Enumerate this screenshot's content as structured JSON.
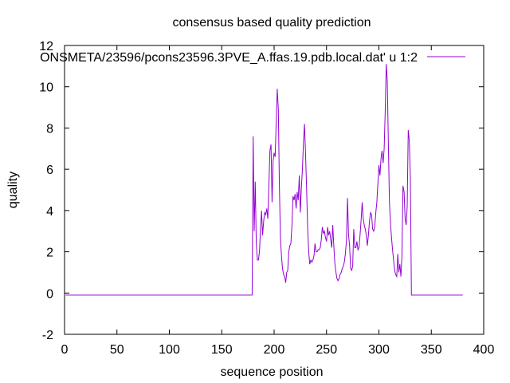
{
  "chart_data": {
    "type": "line",
    "title": "consensus based quality prediction",
    "xlabel": "sequence position",
    "ylabel": "quality",
    "xlim": [
      0,
      400
    ],
    "ylim": [
      -2,
      12
    ],
    "xticks": [
      0,
      50,
      100,
      150,
      200,
      250,
      300,
      350,
      400
    ],
    "yticks": [
      -2,
      0,
      2,
      4,
      6,
      8,
      10,
      12
    ],
    "grid": false,
    "legend_position": "top-right",
    "series": [
      {
        "name": "ONSMETA/23596/pcons23596.3PVE_A.ffas.19.pdb.local.dat' u 1:2",
        "color": "#9400d3",
        "points": [
          [
            1,
            -0.1
          ],
          [
            179,
            -0.1
          ],
          [
            180,
            7.6
          ],
          [
            181,
            3.0
          ],
          [
            182,
            5.4
          ],
          [
            183,
            2.4
          ],
          [
            184,
            1.6
          ],
          [
            185,
            1.6
          ],
          [
            186,
            2.0
          ],
          [
            187,
            3.1
          ],
          [
            188,
            4.0
          ],
          [
            189,
            2.8
          ],
          [
            190,
            3.5
          ],
          [
            191,
            3.9
          ],
          [
            192,
            3.8
          ],
          [
            193,
            4.1
          ],
          [
            194,
            3.6
          ],
          [
            195,
            5.2
          ],
          [
            196,
            6.9
          ],
          [
            197,
            7.2
          ],
          [
            198,
            4.4
          ],
          [
            199,
            6.4
          ],
          [
            200,
            6.8
          ],
          [
            201,
            6.6
          ],
          [
            202,
            8.3
          ],
          [
            203,
            9.9
          ],
          [
            204,
            8.9
          ],
          [
            205,
            5.2
          ],
          [
            206,
            2.7
          ],
          [
            207,
            1.8
          ],
          [
            208,
            1.2
          ],
          [
            209,
            0.9
          ],
          [
            210,
            0.8
          ],
          [
            211,
            0.5
          ],
          [
            212,
            1.0
          ],
          [
            213,
            1.1
          ],
          [
            214,
            2.0
          ],
          [
            215,
            2.3
          ],
          [
            216,
            2.4
          ],
          [
            217,
            3.3
          ],
          [
            218,
            4.7
          ],
          [
            219,
            4.5
          ],
          [
            220,
            4.8
          ],
          [
            221,
            4.1
          ],
          [
            222,
            4.9
          ],
          [
            223,
            4.5
          ],
          [
            224,
            5.7
          ],
          [
            225,
            3.9
          ],
          [
            226,
            5.1
          ],
          [
            227,
            6.0
          ],
          [
            228,
            7.3
          ],
          [
            229,
            8.2
          ],
          [
            230,
            6.8
          ],
          [
            231,
            5.0
          ],
          [
            232,
            3.1
          ],
          [
            233,
            2.0
          ],
          [
            234,
            1.4
          ],
          [
            235,
            1.6
          ],
          [
            236,
            1.5
          ],
          [
            237,
            1.6
          ],
          [
            238,
            1.8
          ],
          [
            239,
            2.4
          ],
          [
            240,
            2.0
          ],
          [
            241,
            2.0
          ],
          [
            242,
            2.1
          ],
          [
            243,
            2.1
          ],
          [
            244,
            2.2
          ],
          [
            245,
            2.6
          ],
          [
            246,
            3.2
          ],
          [
            247,
            2.9
          ],
          [
            248,
            3.0
          ],
          [
            249,
            2.7
          ],
          [
            250,
            2.5
          ],
          [
            251,
            3.2
          ],
          [
            252,
            2.8
          ],
          [
            253,
            3.0
          ],
          [
            254,
            2.6
          ],
          [
            255,
            2.2
          ],
          [
            256,
            3.3
          ],
          [
            257,
            2.2
          ],
          [
            258,
            1.4
          ],
          [
            259,
            1.0
          ],
          [
            260,
            0.7
          ],
          [
            261,
            0.6
          ],
          [
            262,
            0.7
          ],
          [
            263,
            0.9
          ],
          [
            264,
            1.0
          ],
          [
            265,
            1.2
          ],
          [
            266,
            1.3
          ],
          [
            267,
            1.5
          ],
          [
            268,
            1.9
          ],
          [
            269,
            2.5
          ],
          [
            270,
            4.6
          ],
          [
            271,
            2.8
          ],
          [
            272,
            2.3
          ],
          [
            273,
            1.2
          ],
          [
            274,
            1.1
          ],
          [
            275,
            1.3
          ],
          [
            276,
            3.1
          ],
          [
            277,
            2.2
          ],
          [
            278,
            2.2
          ],
          [
            279,
            2.5
          ],
          [
            280,
            2.1
          ],
          [
            281,
            2.2
          ],
          [
            282,
            2.8
          ],
          [
            283,
            3.5
          ],
          [
            284,
            4.4
          ],
          [
            285,
            3.6
          ],
          [
            286,
            3.3
          ],
          [
            287,
            3.1
          ],
          [
            288,
            2.8
          ],
          [
            289,
            2.3
          ],
          [
            290,
            2.8
          ],
          [
            291,
            3.5
          ],
          [
            292,
            3.9
          ],
          [
            293,
            3.8
          ],
          [
            294,
            3.1
          ],
          [
            295,
            3.0
          ],
          [
            296,
            3.2
          ],
          [
            297,
            3.9
          ],
          [
            298,
            4.4
          ],
          [
            299,
            5.3
          ],
          [
            300,
            6.2
          ],
          [
            301,
            5.7
          ],
          [
            302,
            6.5
          ],
          [
            303,
            6.9
          ],
          [
            304,
            6.3
          ],
          [
            305,
            7.0
          ],
          [
            306,
            8.8
          ],
          [
            307,
            11.1
          ],
          [
            308,
            10.3
          ],
          [
            309,
            7.4
          ],
          [
            310,
            4.4
          ],
          [
            311,
            3.4
          ],
          [
            312,
            2.7
          ],
          [
            313,
            2.1
          ],
          [
            314,
            1.6
          ],
          [
            315,
            1.1
          ],
          [
            316,
            0.9
          ],
          [
            317,
            0.8
          ],
          [
            318,
            1.9
          ],
          [
            319,
            1.0
          ],
          [
            320,
            1.4
          ],
          [
            321,
            0.8
          ],
          [
            322,
            1.8
          ],
          [
            323,
            5.2
          ],
          [
            324,
            4.9
          ],
          [
            325,
            3.6
          ],
          [
            326,
            3.3
          ],
          [
            327,
            4.2
          ],
          [
            328,
            7.9
          ],
          [
            329,
            7.4
          ],
          [
            330,
            5.5
          ],
          [
            331,
            -0.1
          ],
          [
            380,
            -0.1
          ]
        ]
      }
    ]
  }
}
